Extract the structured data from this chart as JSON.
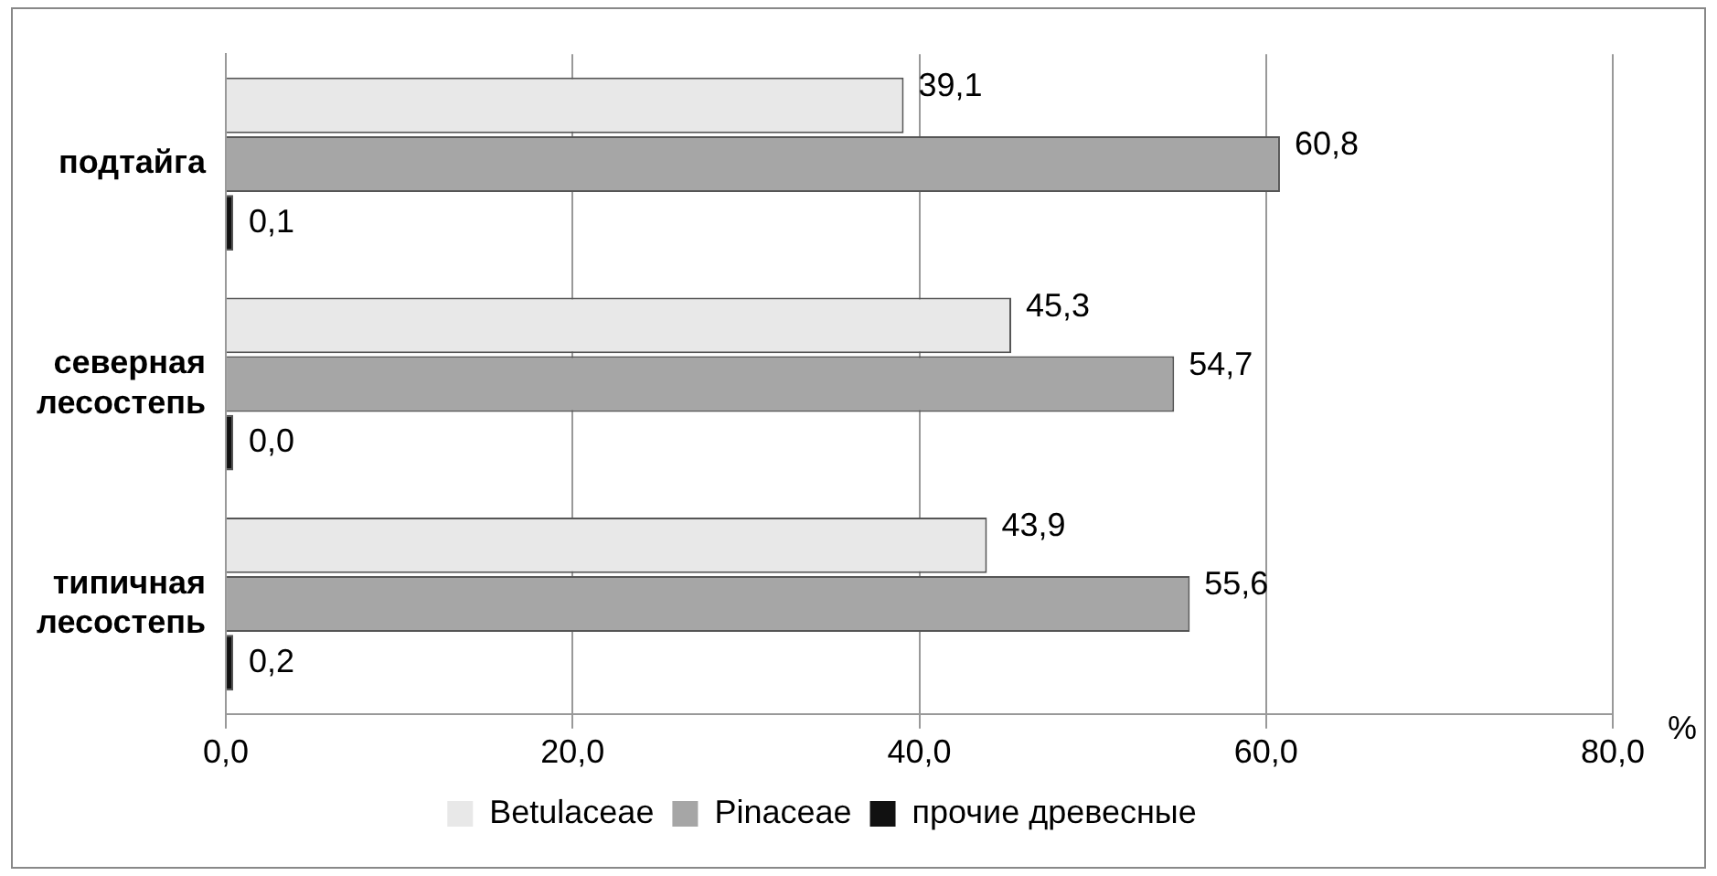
{
  "chart_data": {
    "type": "bar",
    "orientation": "horizontal",
    "categories": [
      "подтайга",
      "северная лесостепь",
      "типичная лесостепь"
    ],
    "series": [
      {
        "name": "Betulaceae",
        "color": "#e8e8e8",
        "values": [
          39.1,
          45.3,
          43.9
        ],
        "value_labels": [
          "39,1",
          "45,3",
          "43,9"
        ]
      },
      {
        "name": "Pinaceae",
        "color": "#a6a6a6",
        "values": [
          60.8,
          54.7,
          55.6
        ],
        "value_labels": [
          "60,8",
          "54,7",
          "55,6"
        ]
      },
      {
        "name": "прочие древесные",
        "color": "#111111",
        "values": [
          0.1,
          0.0,
          0.2
        ],
        "value_labels": [
          "0,1",
          "0,0",
          "0,2"
        ]
      }
    ],
    "xlim": [
      0,
      80
    ],
    "xticks": [
      {
        "value": 0,
        "label": "0,0"
      },
      {
        "value": 20,
        "label": "20,0"
      },
      {
        "value": 40,
        "label": "40,0"
      },
      {
        "value": 60,
        "label": "60,0"
      },
      {
        "value": 80,
        "label": "80,0"
      }
    ],
    "xlabel": "%",
    "grid": "x",
    "legend": "bottom"
  }
}
